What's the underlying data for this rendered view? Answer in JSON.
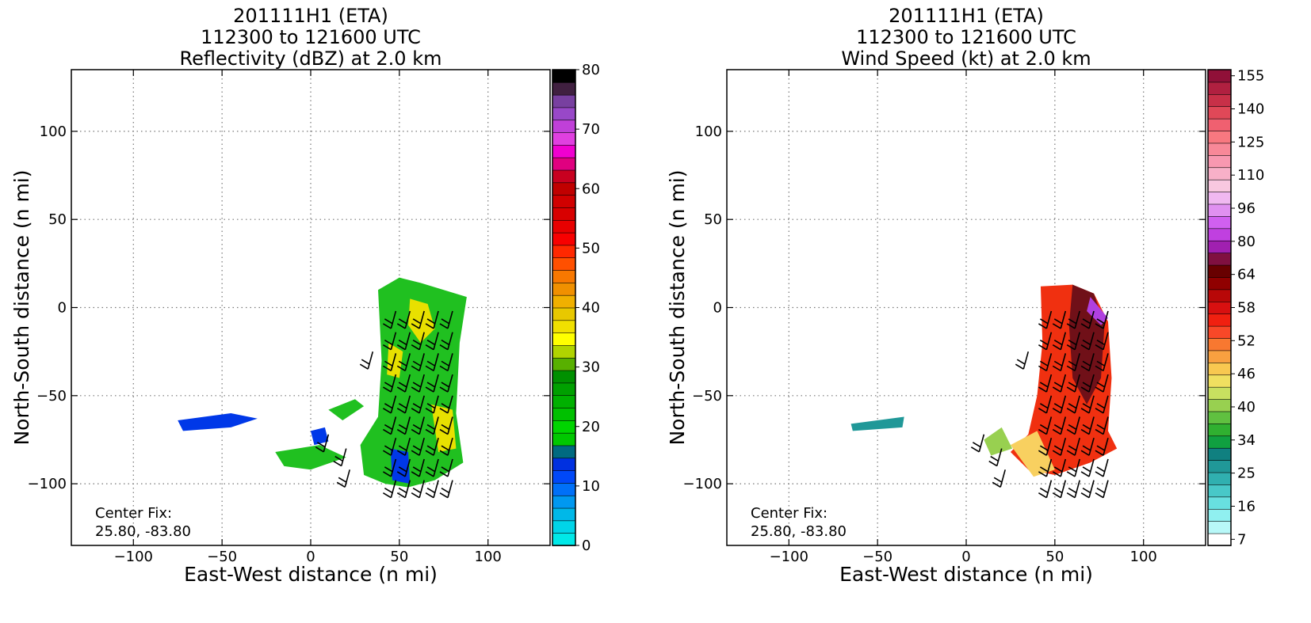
{
  "chart_data": [
    {
      "type": "heatmap",
      "title_lines": [
        "201111H1 (ETA)",
        "112300 to 121600 UTC",
        "Reflectivity (dBZ) at 2.0 km"
      ],
      "xlabel": "East-West distance (n mi)",
      "ylabel": "North-South distance (n mi)",
      "xlim": [
        -135,
        135
      ],
      "ylim": [
        -135,
        135
      ],
      "xticks": [
        -100,
        -50,
        0,
        50,
        100
      ],
      "yticks": [
        -100,
        -50,
        0,
        50,
        100
      ],
      "grid": true,
      "annotation": [
        "Center Fix:",
        "25.80, -83.80"
      ],
      "colorbar": {
        "label_values": [
          0,
          10,
          20,
          30,
          40,
          50,
          60,
          70,
          80
        ],
        "range": [
          0,
          80
        ],
        "colors": [
          "#00e8e8",
          "#00d4e8",
          "#00b8e8",
          "#0098f0",
          "#0070f8",
          "#0048f8",
          "#0030e0",
          "#006a80",
          "#00c800",
          "#00d400",
          "#00c000",
          "#00b000",
          "#00a000",
          "#009000",
          "#58b000",
          "#b0d400",
          "#ffff00",
          "#f0e000",
          "#e8c800",
          "#f0b000",
          "#f09000",
          "#f87800",
          "#ff5000",
          "#ff2800",
          "#f80000",
          "#e80000",
          "#d80000",
          "#d00000",
          "#c00000",
          "#c80020",
          "#e00080",
          "#f000d0",
          "#e040e0",
          "#c040d8",
          "#9848c8",
          "#7840a0",
          "#402040",
          "#000000"
        ]
      },
      "data_colors": {
        "low": "#0038e8",
        "mid": "#20c020",
        "high": "#e8e000"
      },
      "wind_barbs": true
    },
    {
      "type": "heatmap",
      "title_lines": [
        "201111H1 (ETA)",
        "112300 to 121600 UTC",
        "Wind Speed (kt) at 2.0 km"
      ],
      "xlabel": "East-West distance (n mi)",
      "ylabel": "North-South distance (n mi)",
      "xlim": [
        -135,
        135
      ],
      "ylim": [
        -135,
        135
      ],
      "xticks": [
        -100,
        -50,
        0,
        50,
        100
      ],
      "yticks": [
        -100,
        -50,
        0,
        50,
        100
      ],
      "grid": true,
      "annotation": [
        "Center Fix:",
        "25.80, -83.80"
      ],
      "colorbar": {
        "label_values": [
          7,
          16,
          25,
          34,
          40,
          46,
          52,
          58,
          64,
          80,
          96,
          110,
          125,
          140,
          155
        ],
        "colors": [
          "#ffffff",
          "#b8f8f8",
          "#90f0f0",
          "#68e0e0",
          "#48c8c8",
          "#30b0b0",
          "#209898",
          "#108080",
          "#10a040",
          "#30b030",
          "#60c040",
          "#98d050",
          "#c8e060",
          "#f0e060",
          "#f8c850",
          "#f8a040",
          "#f87830",
          "#f84828",
          "#f02010",
          "#d81010",
          "#b80808",
          "#900000",
          "#680000",
          "#801040",
          "#a020b0",
          "#c040e0",
          "#d060f0",
          "#e090f0",
          "#f0b8f0",
          "#f8c8e0",
          "#f8b0c8",
          "#f898b0",
          "#f88898",
          "#f87880",
          "#f06070",
          "#e04858",
          "#c83048",
          "#b02040",
          "#901038"
        ]
      },
      "data_colors": {
        "low": "#f8d060",
        "mid": "#f03010",
        "high": "#701018"
      },
      "wind_barbs": true
    }
  ]
}
